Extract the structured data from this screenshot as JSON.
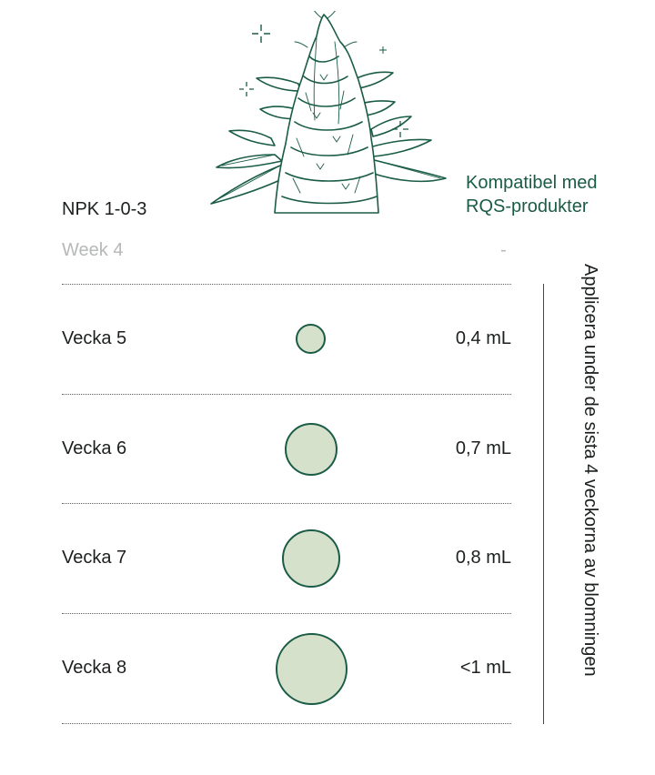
{
  "header": {
    "npk": "NPK 1-0-3",
    "compat_line1": "Kompatibel med",
    "compat_line2": "RQS-produkter",
    "illustration": "cannabis-plant-illustration"
  },
  "inactive_row": {
    "label": "Week 4",
    "dose": "-"
  },
  "schedule": [
    {
      "label": "Vecka 5",
      "dose": "0,4 mL"
    },
    {
      "label": "Vecka 6",
      "dose": "0,7 mL"
    },
    {
      "label": "Vecka 7",
      "dose": "0,8 mL"
    },
    {
      "label": "Vecka 8",
      "dose": "<1 mL"
    }
  ],
  "side_note": "Applicera under de sista 4 veckorna av blomningen",
  "colors": {
    "accent": "#1a5c46",
    "dot_fill": "#d6e1cc",
    "muted": "#b6b9b7"
  }
}
